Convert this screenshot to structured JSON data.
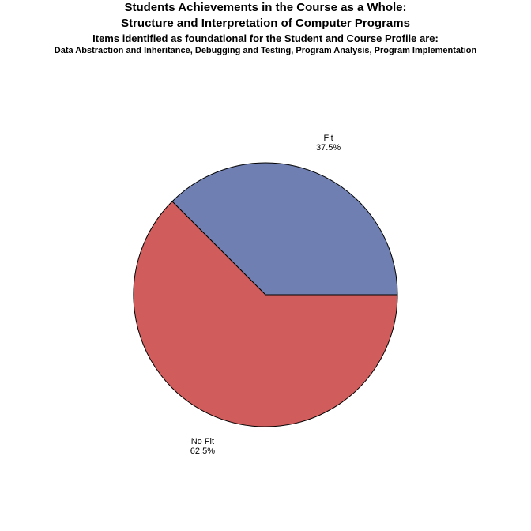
{
  "chart_data": {
    "type": "pie",
    "title": "Students Achievements in the Course as a Whole:",
    "subtitle": "Structure and Interpretation of Computer Programs",
    "footnote_heading": "Items identified as foundational for the Student and Course Profile are:",
    "footnote_items": "Data Abstraction and Inheritance, Debugging and Testing, Program Analysis, Program Implementation",
    "slices": [
      {
        "label": "Fit",
        "value": 37.5,
        "value_label": "37.5%",
        "color": "#6f7fb1"
      },
      {
        "label": "No Fit",
        "value": 62.5,
        "value_label": "62.5%",
        "color": "#d15c5c"
      }
    ],
    "start_angle_deg": 0,
    "direction": "counterclockwise",
    "outline_color": "#000000"
  }
}
